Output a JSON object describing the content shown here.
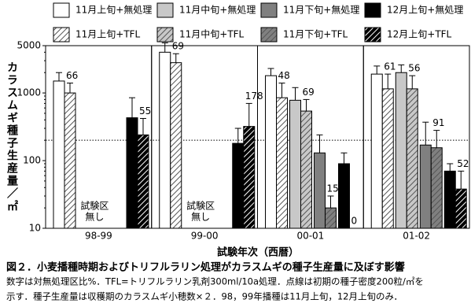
{
  "chart_data": {
    "type": "bar",
    "title": "図２．小麦播種時期およびトリフルラリン処理がカラスムギの種子生産量に及ぼす影響",
    "notes": [
      "数字は対無処理区比%．TFL=トリフルラリン乳剤300ml/10a処理．点線は初期の種子密度200粒/㎡を",
      "示す．種子生産量は収穫期のカラスムギ小穂数×２．98，99年播種は11月上旬，12月上旬のみ．"
    ],
    "x_label": "試験年次（西暦）",
    "y_label": "カラスムギ種子生産量／㎡",
    "categories": [
      "98-99",
      "99-00",
      "00-01",
      "01-02"
    ],
    "log_scale": true,
    "ylim": [
      10,
      5000
    ],
    "yticks": [
      10,
      100,
      1000,
      5000
    ],
    "reference_line": 200,
    "annotations": [
      {
        "category": "98-99",
        "lines": [
          "試験区",
          "無し"
        ]
      },
      {
        "category": "99-00",
        "lines": [
          "試験区",
          "無し"
        ]
      }
    ],
    "series": [
      {
        "name": "11月上旬+無処理",
        "color": "#ffffff",
        "hatched": false,
        "values": [
          1500,
          4000,
          1800,
          1900
        ],
        "upper": [
          2000,
          5500,
          2300,
          2500
        ]
      },
      {
        "name": "11月上旬+TFL",
        "color": "#ffffff",
        "hatched": true,
        "values": [
          1000,
          2800,
          850,
          1150
        ],
        "upper": [
          1400,
          3800,
          1400,
          1900
        ],
        "ratios": [
          66,
          69,
          48,
          61
        ]
      },
      {
        "name": "11月中旬+無処理",
        "color": "#c8c8c8",
        "hatched": false,
        "values": [
          null,
          null,
          780,
          2000
        ],
        "upper": [
          null,
          null,
          1200,
          2600
        ]
      },
      {
        "name": "11月中旬+TFL",
        "color": "#c8c8c8",
        "hatched": true,
        "values": [
          null,
          null,
          540,
          1150
        ],
        "upper": [
          null,
          null,
          800,
          1800
        ],
        "ratios": [
          null,
          null,
          69,
          56
        ]
      },
      {
        "name": "11月下旬+無処理",
        "color": "#808080",
        "hatched": false,
        "values": [
          null,
          null,
          130,
          170
        ],
        "upper": [
          null,
          null,
          240,
          370
        ]
      },
      {
        "name": "11月下旬+TFL",
        "color": "#808080",
        "hatched": true,
        "values": [
          null,
          null,
          20,
          155
        ],
        "upper": [
          null,
          null,
          30,
          280
        ],
        "ratios": [
          null,
          null,
          15,
          91
        ]
      },
      {
        "name": "12月上旬+無処理",
        "color": "#000000",
        "hatched": false,
        "values": [
          430,
          180,
          90,
          70
        ],
        "upper": [
          850,
          300,
          130,
          90
        ]
      },
      {
        "name": "12月上旬+TFL",
        "color": "#000000",
        "hatched": true,
        "values": [
          240,
          320,
          0,
          38
        ],
        "upper": [
          420,
          700,
          null,
          70
        ],
        "ratios": [
          55,
          178,
          0,
          52
        ]
      }
    ]
  }
}
